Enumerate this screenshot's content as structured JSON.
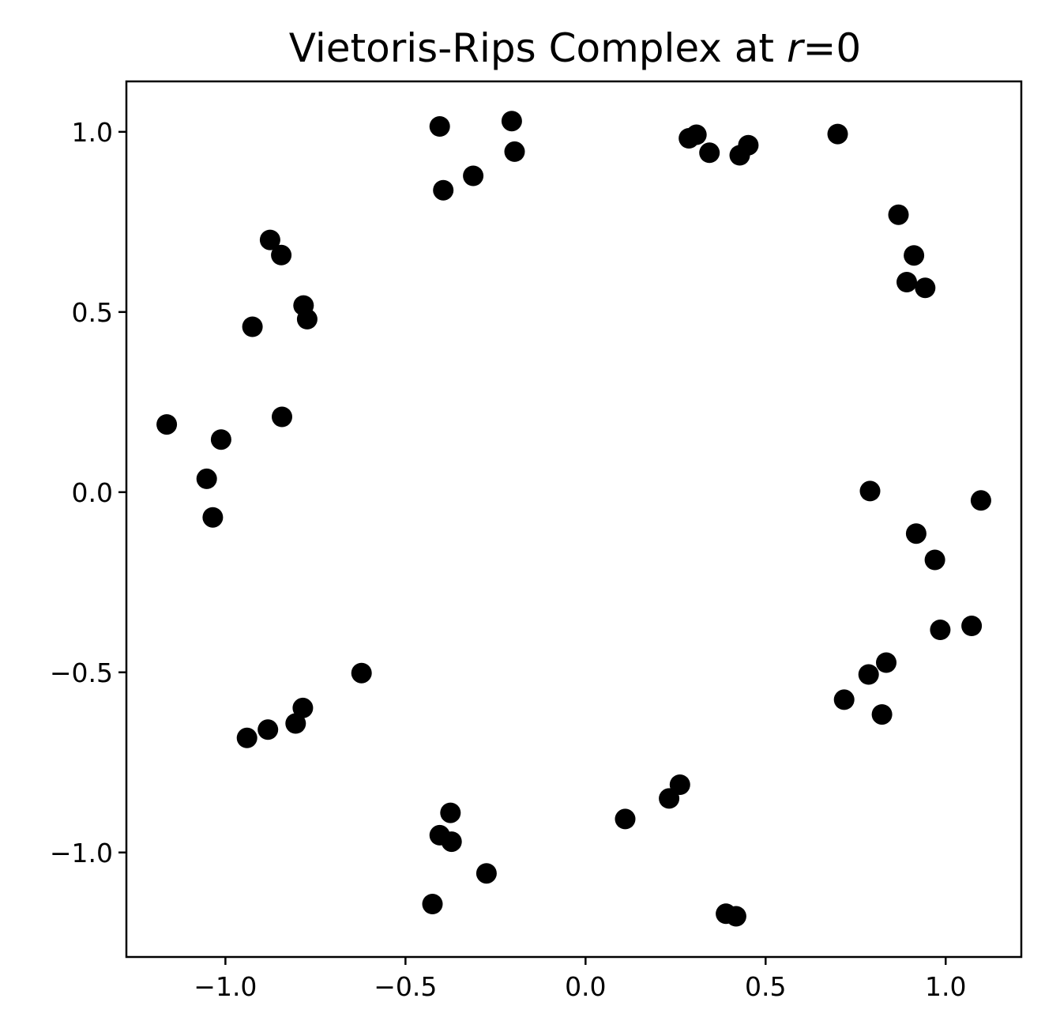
{
  "chart_data": {
    "type": "scatter",
    "title": "Vietoris-Rips Complex at ",
    "title_variable": "r",
    "title_suffix": "=0",
    "xlabel": "",
    "ylabel": "",
    "xlim": [
      -1.275,
      1.21
    ],
    "ylim": [
      -1.29,
      1.14
    ],
    "grid": false,
    "marker_color": "#000000",
    "x_ticks": [
      {
        "value": -1.0,
        "label": "−1.0"
      },
      {
        "value": -0.5,
        "label": "−0.5"
      },
      {
        "value": 0.0,
        "label": "0.0"
      },
      {
        "value": 0.5,
        "label": "0.5"
      },
      {
        "value": 1.0,
        "label": "1.0"
      }
    ],
    "y_ticks": [
      {
        "value": 1.0,
        "label": "1.0"
      },
      {
        "value": 0.5,
        "label": "0.5"
      },
      {
        "value": 0.0,
        "label": "0.0"
      },
      {
        "value": -0.5,
        "label": "−0.5"
      },
      {
        "value": -1.0,
        "label": "−1.0"
      }
    ],
    "points": [
      {
        "x": -0.405,
        "y": 1.015
      },
      {
        "x": -0.205,
        "y": 1.03
      },
      {
        "x": -0.197,
        "y": 0.945
      },
      {
        "x": -0.312,
        "y": 0.878
      },
      {
        "x": -0.395,
        "y": 0.838
      },
      {
        "x": 0.287,
        "y": 0.982
      },
      {
        "x": 0.308,
        "y": 0.992
      },
      {
        "x": 0.344,
        "y": 0.942
      },
      {
        "x": 0.428,
        "y": 0.935
      },
      {
        "x": 0.452,
        "y": 0.963
      },
      {
        "x": 0.7,
        "y": 0.994
      },
      {
        "x": 0.869,
        "y": 0.77
      },
      {
        "x": 0.912,
        "y": 0.657
      },
      {
        "x": 0.892,
        "y": 0.583
      },
      {
        "x": 0.943,
        "y": 0.567
      },
      {
        "x": -0.876,
        "y": 0.7
      },
      {
        "x": -0.845,
        "y": 0.658
      },
      {
        "x": -0.783,
        "y": 0.518
      },
      {
        "x": -0.773,
        "y": 0.48
      },
      {
        "x": -0.925,
        "y": 0.459
      },
      {
        "x": -0.843,
        "y": 0.209
      },
      {
        "x": -1.163,
        "y": 0.188
      },
      {
        "x": -1.012,
        "y": 0.146
      },
      {
        "x": -1.052,
        "y": 0.037
      },
      {
        "x": -1.035,
        "y": -0.07
      },
      {
        "x": 0.79,
        "y": 0.003
      },
      {
        "x": 1.098,
        "y": -0.023
      },
      {
        "x": 0.918,
        "y": -0.115
      },
      {
        "x": 0.97,
        "y": -0.188
      },
      {
        "x": 0.985,
        "y": -0.382
      },
      {
        "x": 1.072,
        "y": -0.371
      },
      {
        "x": 0.835,
        "y": -0.473
      },
      {
        "x": 0.786,
        "y": -0.506
      },
      {
        "x": 0.718,
        "y": -0.576
      },
      {
        "x": 0.823,
        "y": -0.617
      },
      {
        "x": -0.622,
        "y": -0.502
      },
      {
        "x": -0.785,
        "y": -0.599
      },
      {
        "x": -0.805,
        "y": -0.642
      },
      {
        "x": -0.882,
        "y": -0.659
      },
      {
        "x": -0.94,
        "y": -0.682
      },
      {
        "x": 0.262,
        "y": -0.812
      },
      {
        "x": 0.232,
        "y": -0.85
      },
      {
        "x": 0.11,
        "y": -0.907
      },
      {
        "x": -0.375,
        "y": -0.89
      },
      {
        "x": -0.405,
        "y": -0.952
      },
      {
        "x": -0.372,
        "y": -0.97
      },
      {
        "x": -0.275,
        "y": -1.058
      },
      {
        "x": -0.425,
        "y": -1.143
      },
      {
        "x": 0.39,
        "y": -1.17
      },
      {
        "x": 0.418,
        "y": -1.177
      }
    ]
  }
}
